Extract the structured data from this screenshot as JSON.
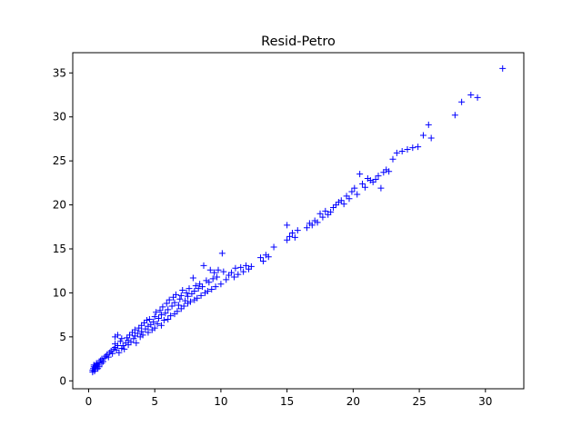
{
  "chart_data": {
    "type": "scatter",
    "title": "Resid-Petro",
    "xlabel": "",
    "ylabel": "",
    "xlim": [
      -1.2,
      32.9
    ],
    "ylim": [
      -0.9,
      37.3
    ],
    "xticks": [
      0,
      5,
      10,
      15,
      20,
      25,
      30
    ],
    "yticks": [
      0,
      5,
      10,
      15,
      20,
      25,
      30,
      35
    ],
    "grid": false,
    "marker": "+",
    "color": "#0000ff",
    "series": [
      {
        "points": [
          [
            0.3,
            1.0
          ],
          [
            0.3,
            1.2
          ],
          [
            0.35,
            1.4
          ],
          [
            0.4,
            1.6
          ],
          [
            0.4,
            1.8
          ],
          [
            0.45,
            1.1
          ],
          [
            0.5,
            1.3
          ],
          [
            0.5,
            1.5
          ],
          [
            0.55,
            1.7
          ],
          [
            0.6,
            1.9
          ],
          [
            0.6,
            2.0
          ],
          [
            0.7,
            1.4
          ],
          [
            0.7,
            1.8
          ],
          [
            0.8,
            2.1
          ],
          [
            0.8,
            1.6
          ],
          [
            0.9,
            2.3
          ],
          [
            1.0,
            2.0
          ],
          [
            1.0,
            2.5
          ],
          [
            1.1,
            2.2
          ],
          [
            1.2,
            2.6
          ],
          [
            1.3,
            2.8
          ],
          [
            1.4,
            3.0
          ],
          [
            1.5,
            2.7
          ],
          [
            1.6,
            3.2
          ],
          [
            1.7,
            3.4
          ],
          [
            1.8,
            3.1
          ],
          [
            1.9,
            3.6
          ],
          [
            2.0,
            3.8
          ],
          [
            2.0,
            4.2
          ],
          [
            2.0,
            5.0
          ],
          [
            2.2,
            5.2
          ],
          [
            2.1,
            3.5
          ],
          [
            2.2,
            4.0
          ],
          [
            2.3,
            3.2
          ],
          [
            2.4,
            4.5
          ],
          [
            2.5,
            3.7
          ],
          [
            2.5,
            4.8
          ],
          [
            2.6,
            4.0
          ],
          [
            2.7,
            3.6
          ],
          [
            2.8,
            4.3
          ],
          [
            2.9,
            4.9
          ],
          [
            3.0,
            4.1
          ],
          [
            3.0,
            4.6
          ],
          [
            3.1,
            5.2
          ],
          [
            3.2,
            4.4
          ],
          [
            3.3,
            5.5
          ],
          [
            3.4,
            4.8
          ],
          [
            3.5,
            5.1
          ],
          [
            3.5,
            5.8
          ],
          [
            3.6,
            4.3
          ],
          [
            3.7,
            5.4
          ],
          [
            3.8,
            6.0
          ],
          [
            3.9,
            5.0
          ],
          [
            4.0,
            5.6
          ],
          [
            4.0,
            6.3
          ],
          [
            4.1,
            5.2
          ],
          [
            4.2,
            6.6
          ],
          [
            4.3,
            5.9
          ],
          [
            4.4,
            6.9
          ],
          [
            4.5,
            5.5
          ],
          [
            4.5,
            6.2
          ],
          [
            4.6,
            7.0
          ],
          [
            4.7,
            6.4
          ],
          [
            4.8,
            5.8
          ],
          [
            4.9,
            6.7
          ],
          [
            5.0,
            7.3
          ],
          [
            5.0,
            6.0
          ],
          [
            5.1,
            7.8
          ],
          [
            5.2,
            6.5
          ],
          [
            5.3,
            7.1
          ],
          [
            5.4,
            8.0
          ],
          [
            5.5,
            6.3
          ],
          [
            5.5,
            7.5
          ],
          [
            5.6,
            8.4
          ],
          [
            5.7,
            6.9
          ],
          [
            5.8,
            7.7
          ],
          [
            5.9,
            8.8
          ],
          [
            6.0,
            7.0
          ],
          [
            6.0,
            8.1
          ],
          [
            6.1,
            9.2
          ],
          [
            6.2,
            7.4
          ],
          [
            6.3,
            8.5
          ],
          [
            6.4,
            9.5
          ],
          [
            6.5,
            7.6
          ],
          [
            6.5,
            8.9
          ],
          [
            6.6,
            9.8
          ],
          [
            6.7,
            7.9
          ],
          [
            6.8,
            8.6
          ],
          [
            6.9,
            9.3
          ],
          [
            7.0,
            8.2
          ],
          [
            7.0,
            9.7
          ],
          [
            7.1,
            10.3
          ],
          [
            7.2,
            8.5
          ],
          [
            7.3,
            9.1
          ],
          [
            7.4,
            10.0
          ],
          [
            7.5,
            8.8
          ],
          [
            7.5,
            9.6
          ],
          [
            7.6,
            10.5
          ],
          [
            7.7,
            9.0
          ],
          [
            7.8,
            9.9
          ],
          [
            7.9,
            11.7
          ],
          [
            8.0,
            9.2
          ],
          [
            8.0,
            10.2
          ],
          [
            8.1,
            10.8
          ],
          [
            8.2,
            9.4
          ],
          [
            8.3,
            10.5
          ],
          [
            8.4,
            11.0
          ],
          [
            8.5,
            9.7
          ],
          [
            8.6,
            10.7
          ],
          [
            8.7,
            13.1
          ],
          [
            8.8,
            10.0
          ],
          [
            8.9,
            11.4
          ],
          [
            9.0,
            10.2
          ],
          [
            9.1,
            11.2
          ],
          [
            9.2,
            12.6
          ],
          [
            9.3,
            10.4
          ],
          [
            9.4,
            11.6
          ],
          [
            9.5,
            12.3
          ],
          [
            9.6,
            10.7
          ],
          [
            9.7,
            11.8
          ],
          [
            9.8,
            12.6
          ],
          [
            10.0,
            11.0
          ],
          [
            10.1,
            14.5
          ],
          [
            10.2,
            12.4
          ],
          [
            10.4,
            11.5
          ],
          [
            10.6,
            12.0
          ],
          [
            10.8,
            12.3
          ],
          [
            11.0,
            11.8
          ],
          [
            11.1,
            12.8
          ],
          [
            11.3,
            12.1
          ],
          [
            11.5,
            12.9
          ],
          [
            11.7,
            12.4
          ],
          [
            11.9,
            13.1
          ],
          [
            12.1,
            12.7
          ],
          [
            12.3,
            13.0
          ],
          [
            13.0,
            14.0
          ],
          [
            13.2,
            13.6
          ],
          [
            13.4,
            14.3
          ],
          [
            13.6,
            14.1
          ],
          [
            14.0,
            15.2
          ],
          [
            15.0,
            16.0
          ],
          [
            15.0,
            17.7
          ],
          [
            15.2,
            16.4
          ],
          [
            15.4,
            16.8
          ],
          [
            15.6,
            16.3
          ],
          [
            15.8,
            17.1
          ],
          [
            16.5,
            17.4
          ],
          [
            16.7,
            17.9
          ],
          [
            16.9,
            17.7
          ],
          [
            17.1,
            18.2
          ],
          [
            17.3,
            18.0
          ],
          [
            17.5,
            19.0
          ],
          [
            17.7,
            18.6
          ],
          [
            17.9,
            19.3
          ],
          [
            18.1,
            18.9
          ],
          [
            18.3,
            19.2
          ],
          [
            18.5,
            19.7
          ],
          [
            18.7,
            20.0
          ],
          [
            18.9,
            20.3
          ],
          [
            19.1,
            20.5
          ],
          [
            19.3,
            20.1
          ],
          [
            19.5,
            21.0
          ],
          [
            19.7,
            20.7
          ],
          [
            19.9,
            21.5
          ],
          [
            20.1,
            21.9
          ],
          [
            20.3,
            21.2
          ],
          [
            20.5,
            23.5
          ],
          [
            20.7,
            22.4
          ],
          [
            20.9,
            22.0
          ],
          [
            21.1,
            23.0
          ],
          [
            21.3,
            22.8
          ],
          [
            21.5,
            22.6
          ],
          [
            21.7,
            22.9
          ],
          [
            21.9,
            23.3
          ],
          [
            22.1,
            21.9
          ],
          [
            22.3,
            23.7
          ],
          [
            22.5,
            24.0
          ],
          [
            22.7,
            23.8
          ],
          [
            23.0,
            25.2
          ],
          [
            23.3,
            25.9
          ],
          [
            23.7,
            26.1
          ],
          [
            24.1,
            26.3
          ],
          [
            24.5,
            26.5
          ],
          [
            24.9,
            26.6
          ],
          [
            25.3,
            27.9
          ],
          [
            25.7,
            29.1
          ],
          [
            25.9,
            27.6
          ],
          [
            27.7,
            30.2
          ],
          [
            28.2,
            31.7
          ],
          [
            28.9,
            32.5
          ],
          [
            29.4,
            32.2
          ],
          [
            31.3,
            35.5
          ]
        ]
      }
    ]
  }
}
